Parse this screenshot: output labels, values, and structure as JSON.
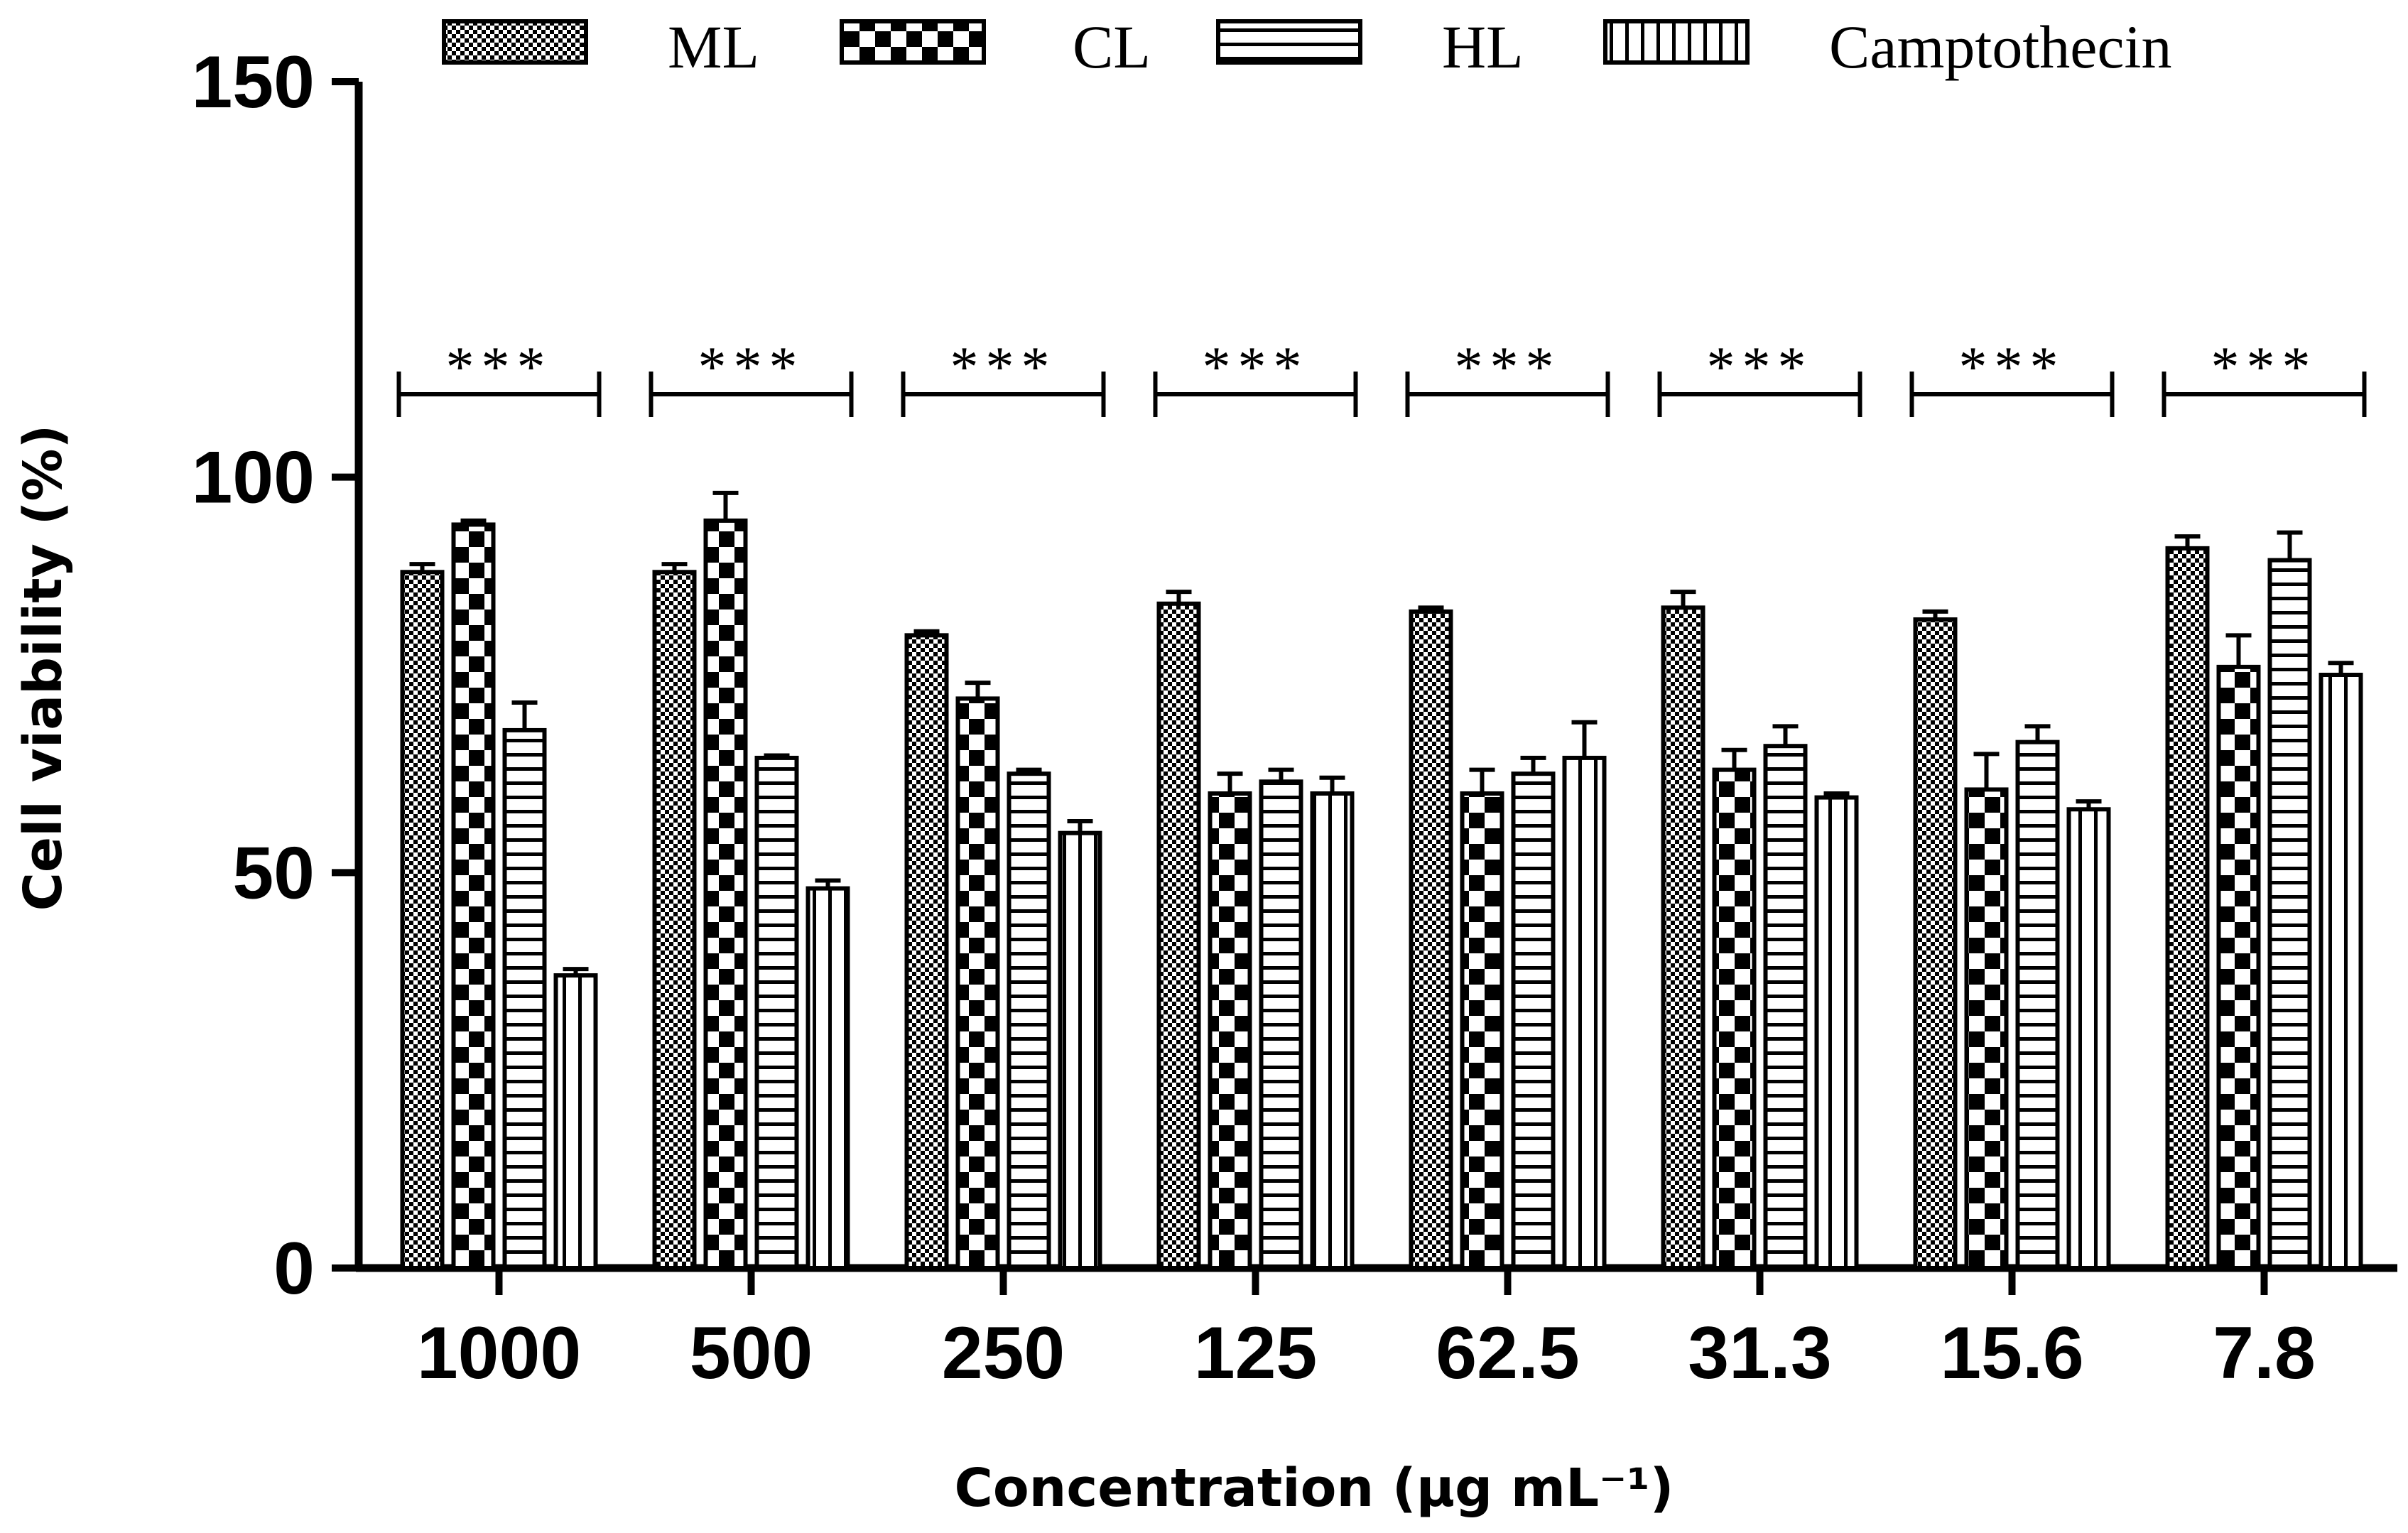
{
  "chart_data": {
    "type": "bar",
    "title": "",
    "xlabel": "Concentration (µg mL⁻¹)",
    "ylabel": "Cell viability (%)",
    "ylim": [
      0,
      150
    ],
    "yticks": [
      "0",
      "50",
      "100",
      "150"
    ],
    "categories": [
      "1000",
      "500",
      "250",
      "125",
      "62.5",
      "31.3",
      "15.6",
      "7.8"
    ],
    "series": [
      {
        "name": "ML",
        "pattern": "dots",
        "values": [
          88,
          88,
          80,
          84,
          83,
          83.5,
          82,
          91
        ],
        "errors": [
          1,
          1,
          0.5,
          1.5,
          0.5,
          2,
          1,
          1.5
        ]
      },
      {
        "name": "CL",
        "pattern": "checker",
        "values": [
          94,
          94.5,
          72,
          60,
          60,
          63,
          60.5,
          76
        ],
        "errors": [
          0.5,
          3.5,
          2,
          2.5,
          3,
          2.5,
          4.5,
          4
        ]
      },
      {
        "name": "HL",
        "pattern": "hlines",
        "values": [
          68,
          64.5,
          62.5,
          61.5,
          62.5,
          66,
          66.5,
          89.5
        ],
        "errors": [
          3.5,
          0.3,
          0.5,
          1.5,
          2,
          2.5,
          2,
          3.5
        ]
      },
      {
        "name": "Camptothecin",
        "pattern": "vlines",
        "values": [
          37,
          48,
          55,
          60,
          64.5,
          59.5,
          58,
          75
        ],
        "errors": [
          0.8,
          1,
          1.5,
          2,
          4.5,
          0.5,
          1,
          1.5
        ]
      }
    ],
    "significance": [
      "***",
      "***",
      "***",
      "***",
      "***",
      "***",
      "***",
      "***"
    ],
    "legend_position": "top",
    "grid": false
  },
  "colors": {
    "ink": "#000000",
    "background": "#ffffff"
  }
}
